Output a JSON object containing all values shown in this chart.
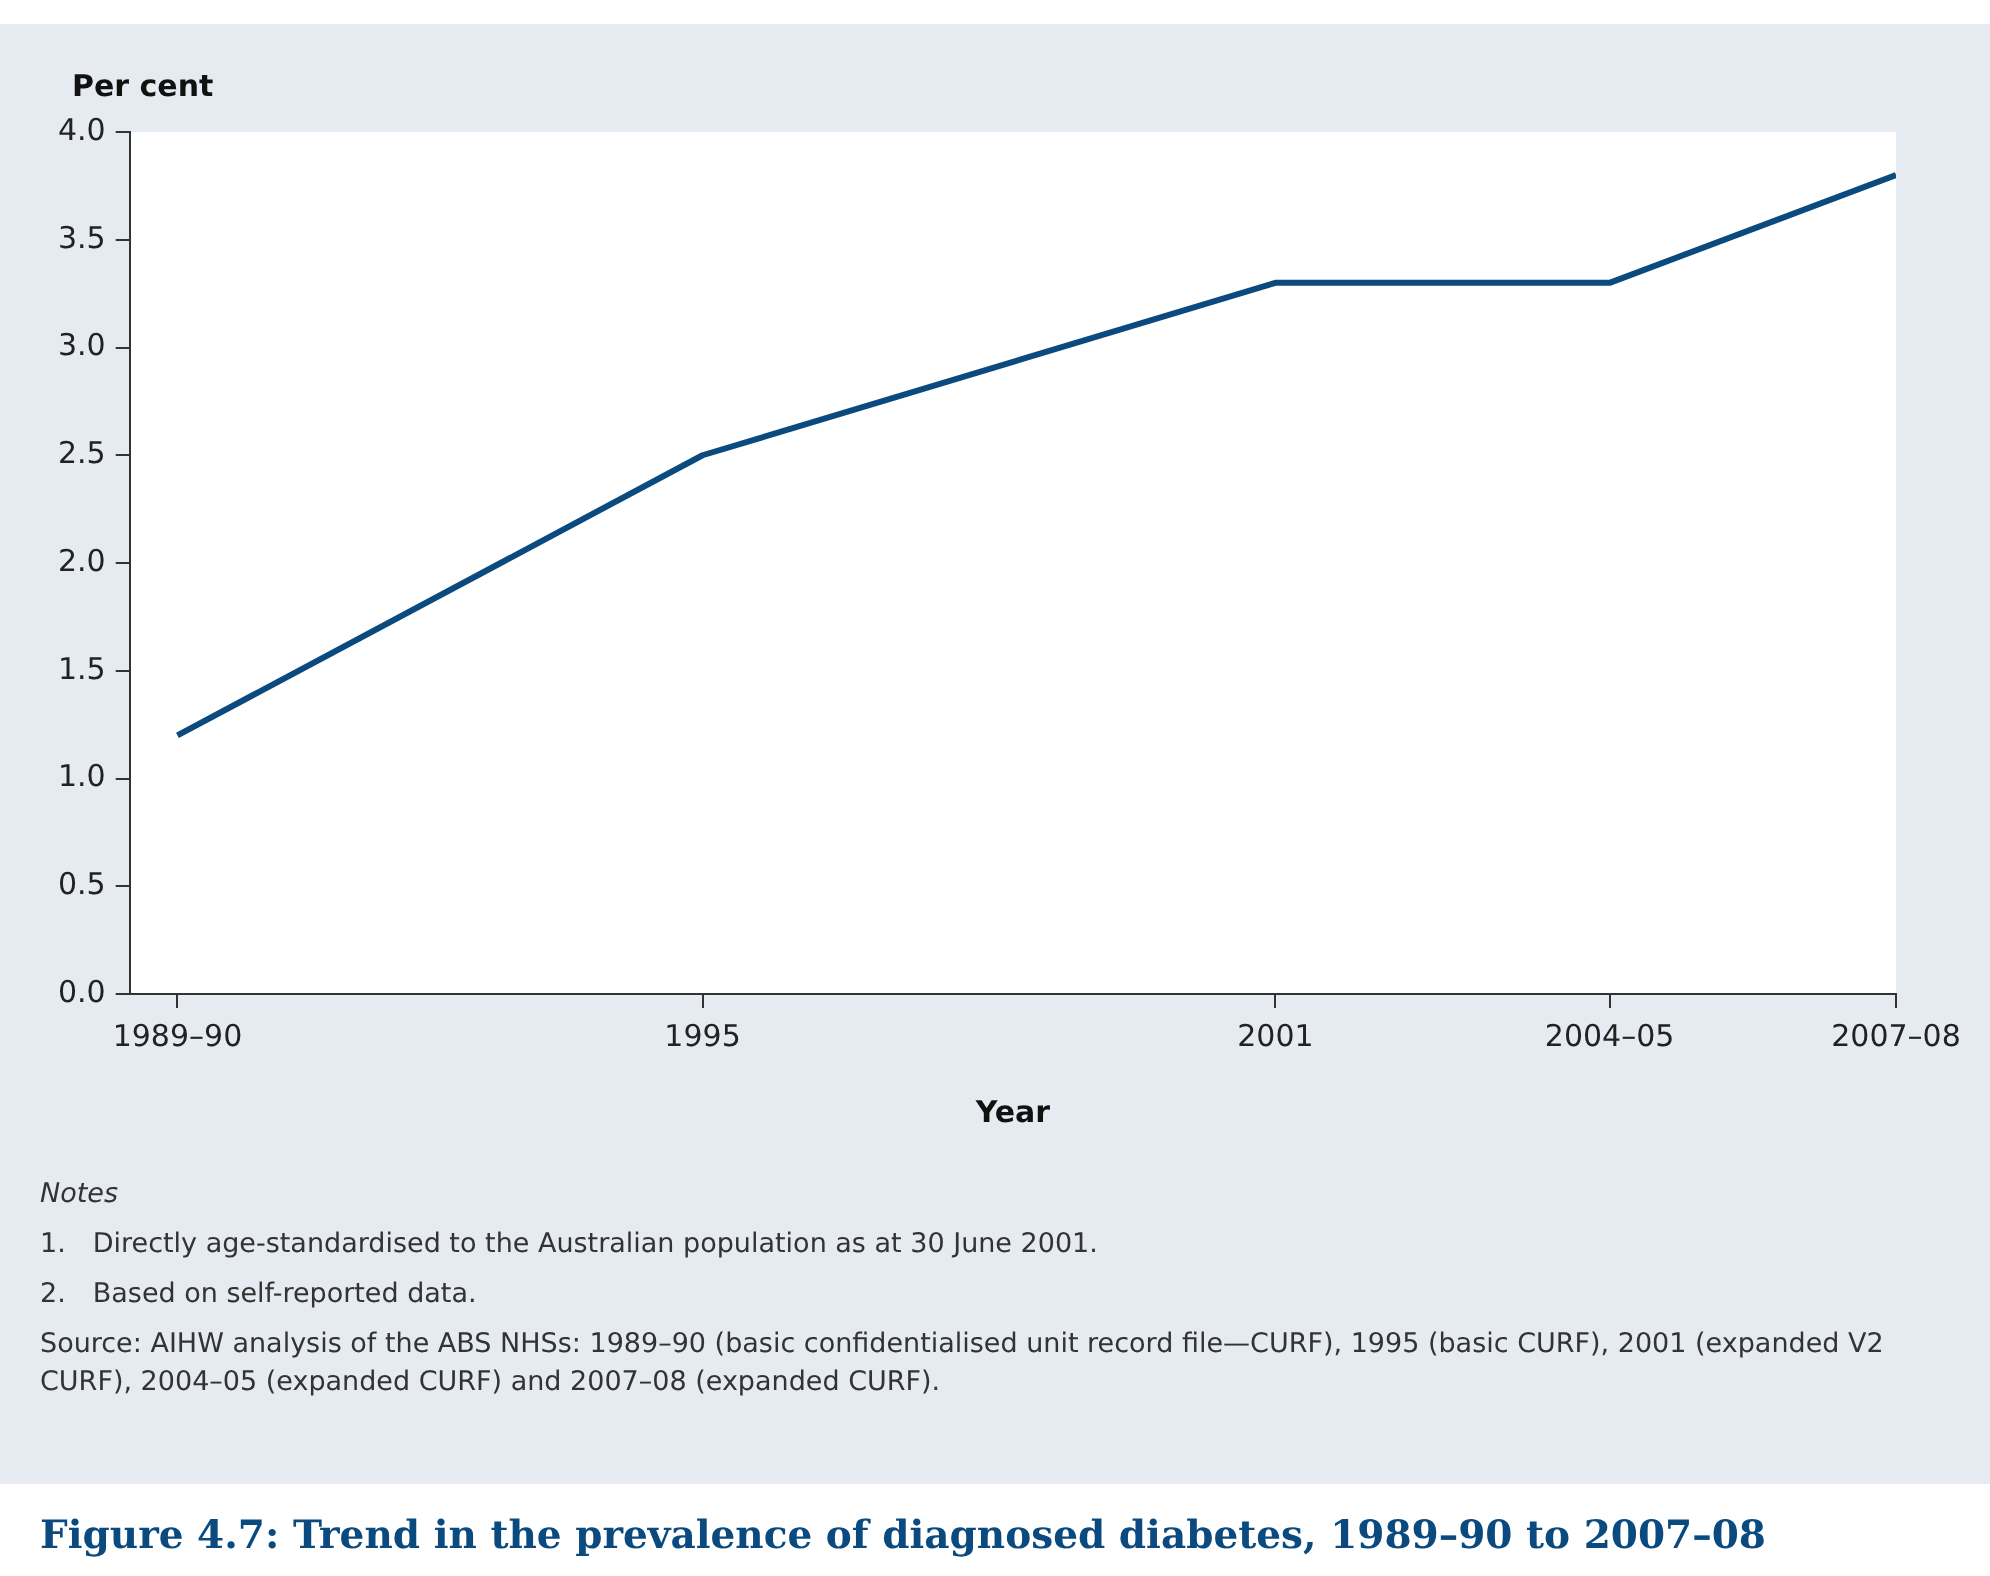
{
  "chart_data": {
    "type": "line",
    "title": "Figure 4.7: Trend in the prevalence of diagnosed diabetes, 1989–90 to 2007–08",
    "xlabel": "Year",
    "ylabel": "Per cent",
    "x": [
      1989.5,
      1995,
      2001,
      2004.5,
      2007.5
    ],
    "series": [
      {
        "color": "#0b4a7e",
        "values": [
          1.2,
          2.5,
          3.3,
          3.3,
          3.8
        ]
      }
    ],
    "xlim": [
      1989,
      2007.5
    ],
    "xticks": [
      {
        "value": 1989.5,
        "label": "1989–90"
      },
      1995,
      2001,
      {
        "value": 2004.5,
        "label": "2004–05"
      },
      {
        "value": 2007.5,
        "label": "2007–08"
      }
    ],
    "ylim": [
      0,
      4
    ],
    "yticks": [
      {
        "value": 0,
        "label": "0.0"
      },
      0.5,
      {
        "value": 1,
        "label": "1.0"
      },
      1.5,
      {
        "value": 2,
        "label": "2.0"
      },
      2.5,
      {
        "value": 3,
        "label": "3.0"
      },
      3.5,
      {
        "value": 4,
        "label": "4.0"
      }
    ],
    "grid": false,
    "legend": false,
    "marker": "none",
    "line_style": "solid",
    "annotations": [
      "Notes",
      "1. Directly age-standardised to the Australian population as at 30 June 2001.",
      "2. Based on self-reported data.",
      "Source: AIHW analysis of the ABS NHSs: 1989–90 (basic confidentialised unit record file—CURF), 1995 (basic CURF), 2001 (expanded V2 CURF), 2004–05 (expanded CURF) and 2007–08 (expanded CURF)."
    ]
  }
}
